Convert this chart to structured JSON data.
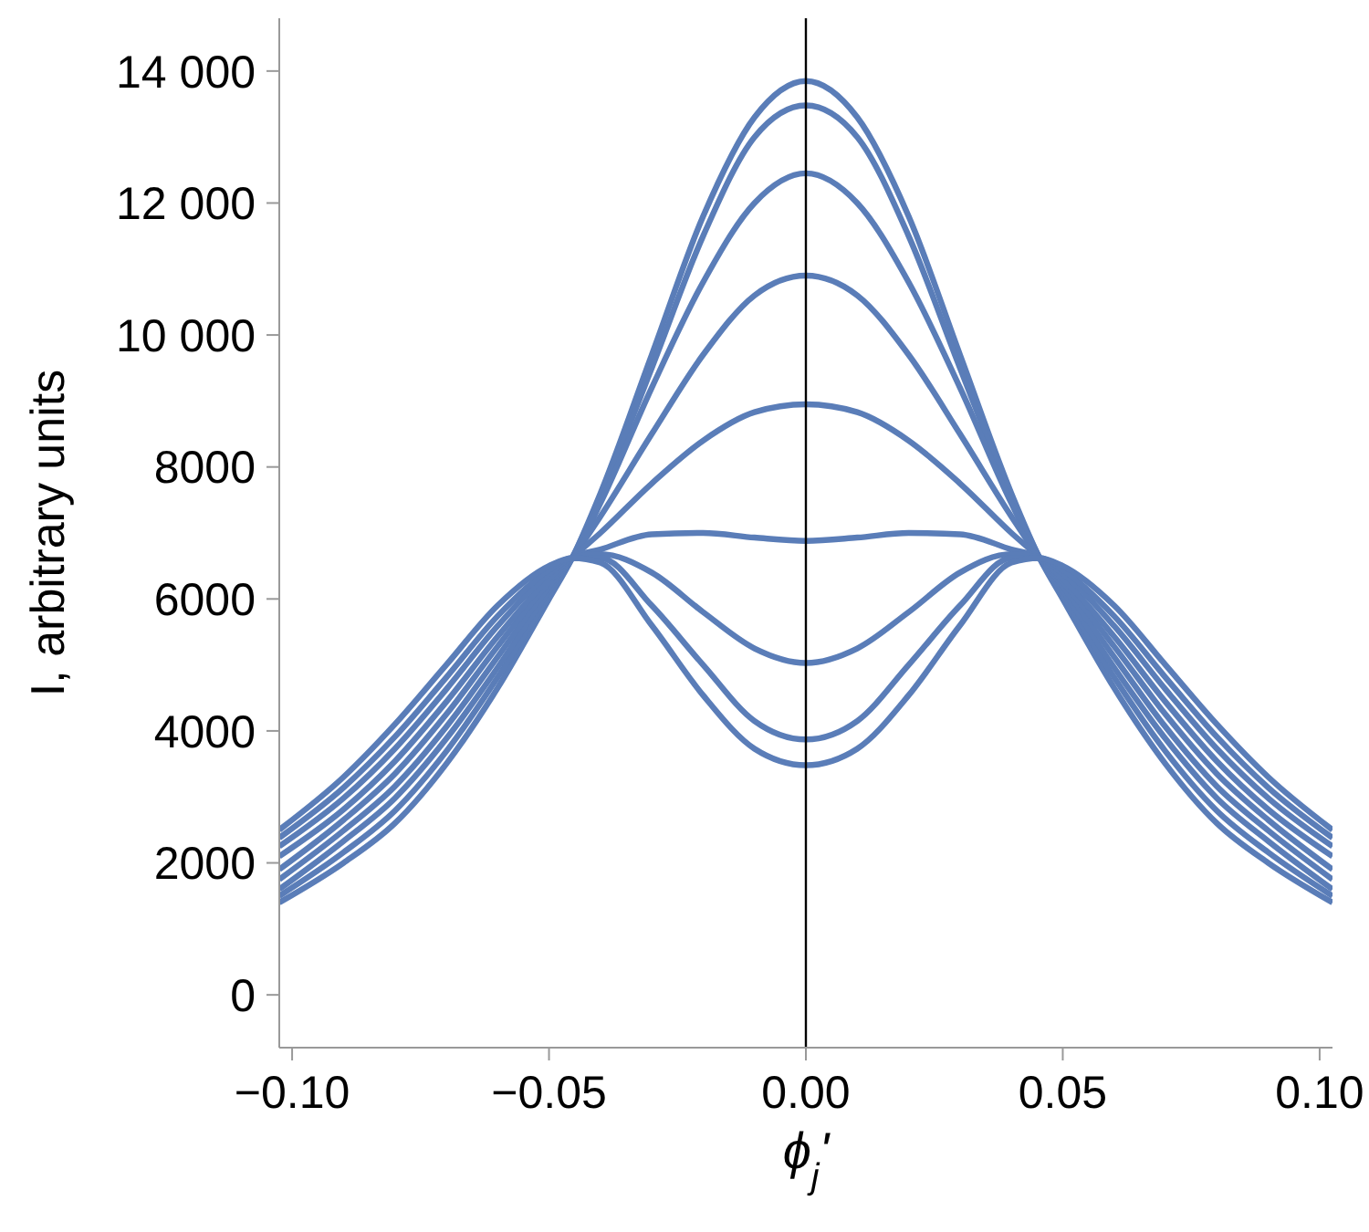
{
  "chart_data": {
    "type": "line",
    "xlabel": "ϕ$_{j}$'",
    "ylabel": "I, arbitrary units",
    "x": [
      -0.1025,
      -0.09,
      -0.08,
      -0.07,
      -0.06,
      -0.05,
      -0.0455,
      -0.04,
      -0.03,
      -0.02,
      -0.01,
      0,
      0.01,
      0.02,
      0.03,
      0.04,
      0.0455,
      0.05,
      0.06,
      0.07,
      0.08,
      0.09,
      0.1025
    ],
    "series": [
      {
        "color": "#5a7db8",
        "values": [
          1400,
          2000,
          2600,
          3500,
          4650,
          6000,
          6620,
          7600,
          9700,
          11800,
          13300,
          13850,
          13300,
          11800,
          9700,
          7600,
          6620,
          6000,
          4650,
          3500,
          2600,
          2000,
          1400
        ]
      },
      {
        "color": "#5a7db8",
        "values": [
          1500,
          2160,
          2790,
          3690,
          4810,
          6060,
          6620,
          7550,
          9500,
          11500,
          13000,
          13480,
          13000,
          11500,
          9500,
          7550,
          6620,
          6060,
          4810,
          3690,
          2790,
          2160,
          1500
        ]
      },
      {
        "color": "#5a7db8",
        "values": [
          1600,
          2330,
          2980,
          3880,
          4960,
          6130,
          6620,
          7450,
          9200,
          10800,
          12000,
          12450,
          12000,
          10800,
          9200,
          7450,
          6620,
          6130,
          4960,
          3880,
          2980,
          2330,
          1600
        ]
      },
      {
        "color": "#5a7db8",
        "values": [
          1750,
          2490,
          3160,
          4060,
          5120,
          6190,
          6620,
          7250,
          8500,
          9700,
          10600,
          10900,
          10600,
          9700,
          8500,
          7250,
          6620,
          6190,
          5120,
          4060,
          3160,
          2490,
          1750
        ]
      },
      {
        "color": "#5a7db8",
        "values": [
          1900,
          2650,
          3350,
          4250,
          5280,
          6250,
          6620,
          7000,
          7750,
          8400,
          8830,
          8950,
          8830,
          8400,
          7750,
          7000,
          6620,
          6250,
          5280,
          4250,
          3350,
          2650,
          1900
        ]
      },
      {
        "color": "#5a7db8",
        "values": [
          2100,
          2810,
          3540,
          4440,
          5430,
          6310,
          6620,
          6750,
          6980,
          7000,
          6930,
          6880,
          6930,
          7000,
          6980,
          6750,
          6620,
          6310,
          5430,
          4440,
          3540,
          2810,
          2100
        ]
      },
      {
        "color": "#5a7db8",
        "values": [
          2250,
          2980,
          3730,
          4630,
          5590,
          6380,
          6620,
          6680,
          6400,
          5800,
          5250,
          5030,
          5250,
          5800,
          6400,
          6680,
          6620,
          6380,
          5590,
          4630,
          3730,
          2980,
          2250
        ]
      },
      {
        "color": "#5a7db8",
        "values": [
          2380,
          3140,
          3910,
          4810,
          5740,
          6440,
          6620,
          6620,
          5900,
          5000,
          4150,
          3870,
          4150,
          5000,
          5900,
          6620,
          6620,
          6440,
          5740,
          4810,
          3910,
          3140,
          2380
        ]
      },
      {
        "color": "#5a7db8",
        "values": [
          2500,
          3300,
          4100,
          5000,
          5900,
          6500,
          6620,
          6550,
          5600,
          4540,
          3730,
          3480,
          3730,
          4540,
          5600,
          6550,
          6620,
          6500,
          5900,
          5000,
          4100,
          3300,
          2500
        ]
      }
    ],
    "xlim": [
      -0.1025,
      0.1025
    ],
    "xticks": [
      {
        "value": -0.1,
        "label": "−0.10"
      },
      {
        "value": -0.05,
        "label": "−0.05"
      },
      {
        "value": 0,
        "label": "0.00"
      },
      {
        "value": 0.05,
        "label": "0.05"
      },
      {
        "value": 0.1,
        "label": "0.10"
      }
    ],
    "ylim": [
      -800,
      14800
    ],
    "yticks": [
      0,
      2000,
      4000,
      6000,
      8000,
      {
        "value": 10000,
        "label": "10 000"
      },
      {
        "value": 12000,
        "label": "12 000"
      },
      {
        "value": 14000,
        "label": "14 000"
      }
    ],
    "ref_lines": [
      {
        "axis": "x",
        "value": 0,
        "color": "#000000"
      }
    ],
    "grid": false,
    "legend": false,
    "marker": "none",
    "line_style": "solid"
  }
}
